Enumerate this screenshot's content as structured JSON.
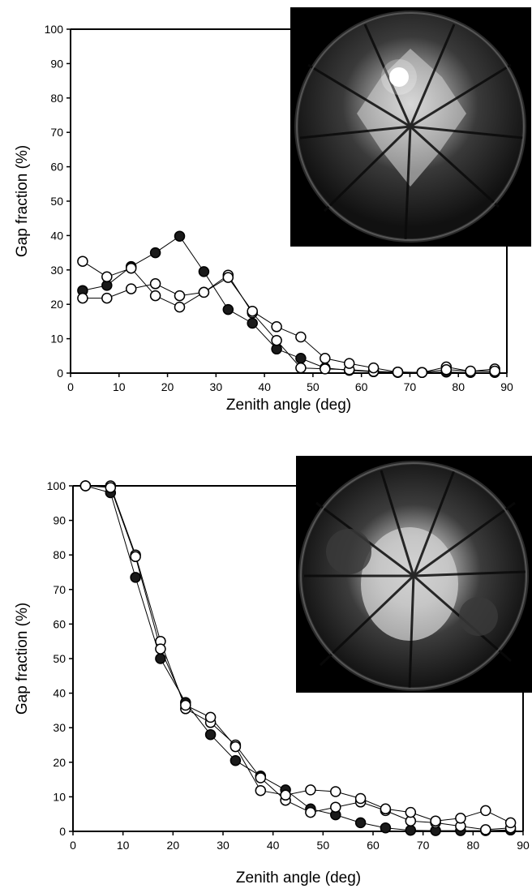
{
  "chart_data": [
    {
      "type": "scatter",
      "title": "",
      "xlabel": "Zenith angle (deg)",
      "ylabel": "Gap fraction (%)",
      "xlim": [
        0,
        90
      ],
      "ylim": [
        0,
        100
      ],
      "xticks": [
        0,
        10,
        20,
        30,
        40,
        50,
        60,
        70,
        80,
        90
      ],
      "yticks": [
        0,
        10,
        20,
        30,
        40,
        50,
        60,
        70,
        80,
        90,
        100
      ],
      "inset": "hemispherical canopy photograph",
      "series": [
        {
          "marker": "filled",
          "x": [
            2.5,
            7.5,
            12.5,
            17.5,
            22.5,
            27.5,
            32.5,
            37.5,
            42.5,
            47.5,
            52.5,
            57.5,
            62.5,
            67.5,
            72.5,
            77.5,
            82.5,
            87.5
          ],
          "values": [
            24,
            25.5,
            31,
            35,
            39.8,
            29.5,
            18.5,
            14.5,
            7,
            4.3,
            1.5,
            0.8,
            0.4,
            0.2,
            0.2,
            0.3,
            0.2,
            0.2
          ]
        },
        {
          "marker": "open",
          "x": [
            2.5,
            7.5,
            12.5,
            17.5,
            22.5,
            27.5,
            32.5,
            37.5,
            42.5,
            47.5,
            52.5,
            57.5,
            62.5,
            67.5,
            72.5,
            77.5,
            82.5,
            87.5
          ],
          "values": [
            32.5,
            28,
            30.5,
            22.5,
            19.2,
            23.5,
            28.5,
            17.5,
            9.5,
            1.5,
            1.2,
            1,
            0.5,
            0.3,
            0.2,
            1.8,
            0.5,
            1.2
          ]
        },
        {
          "marker": "open",
          "x": [
            2.5,
            7.5,
            12.5,
            17.5,
            22.5,
            27.5,
            32.5,
            37.5,
            42.5,
            47.5,
            52.5,
            57.5,
            62.5,
            67.5,
            72.5,
            77.5,
            82.5,
            87.5
          ],
          "values": [
            21.8,
            21.8,
            24.5,
            26,
            22.5,
            23.5,
            27.8,
            18,
            13.5,
            10.5,
            4.3,
            2.8,
            1.5,
            0.3,
            0.2,
            1,
            0.6,
            0.6
          ]
        }
      ]
    },
    {
      "type": "scatter",
      "title": "",
      "xlabel": "Zenith angle (deg)",
      "ylabel": "Gap fraction (%)",
      "xlim": [
        0,
        90
      ],
      "ylim": [
        0,
        100
      ],
      "xticks": [
        0,
        10,
        20,
        30,
        40,
        50,
        60,
        70,
        80,
        90
      ],
      "yticks": [
        0,
        10,
        20,
        30,
        40,
        50,
        60,
        70,
        80,
        90,
        100
      ],
      "inset": "hemispherical canopy photograph",
      "series": [
        {
          "marker": "filled",
          "x": [
            2.5,
            7.5,
            12.5,
            17.5,
            22.5,
            27.5,
            32.5,
            37.5,
            42.5,
            47.5,
            52.5,
            57.5,
            62.5,
            67.5,
            72.5,
            77.5,
            82.5,
            87.5
          ],
          "values": [
            100,
            98,
            73.5,
            50,
            37.3,
            28,
            20.5,
            16,
            12,
            6.5,
            4.8,
            2.5,
            1,
            0.3,
            0.2,
            0.2,
            0.2,
            0.4
          ]
        },
        {
          "marker": "open",
          "x": [
            2.5,
            7.5,
            12.5,
            17.5,
            22.5,
            27.5,
            32.5,
            37.5,
            42.5,
            47.5,
            52.5,
            57.5,
            62.5,
            67.5,
            72.5,
            77.5,
            82.5,
            87.5
          ],
          "values": [
            100,
            100,
            80,
            55,
            35.5,
            31.5,
            25,
            15.5,
            9,
            5.5,
            7,
            8.5,
            6,
            3,
            2.5,
            1.5,
            0.5,
            1
          ]
        },
        {
          "marker": "open",
          "x": [
            2.5,
            7.5,
            12.5,
            17.5,
            22.5,
            27.5,
            32.5,
            37.5,
            42.5,
            47.5,
            52.5,
            57.5,
            62.5,
            67.5,
            72.5,
            77.5,
            82.5,
            87.5
          ],
          "values": [
            100,
            99.5,
            79.5,
            52.8,
            36.5,
            33,
            24.5,
            11.8,
            10.5,
            12,
            11.5,
            9.5,
            6.5,
            5.5,
            3,
            3.8,
            6,
            2.5
          ]
        }
      ]
    }
  ]
}
